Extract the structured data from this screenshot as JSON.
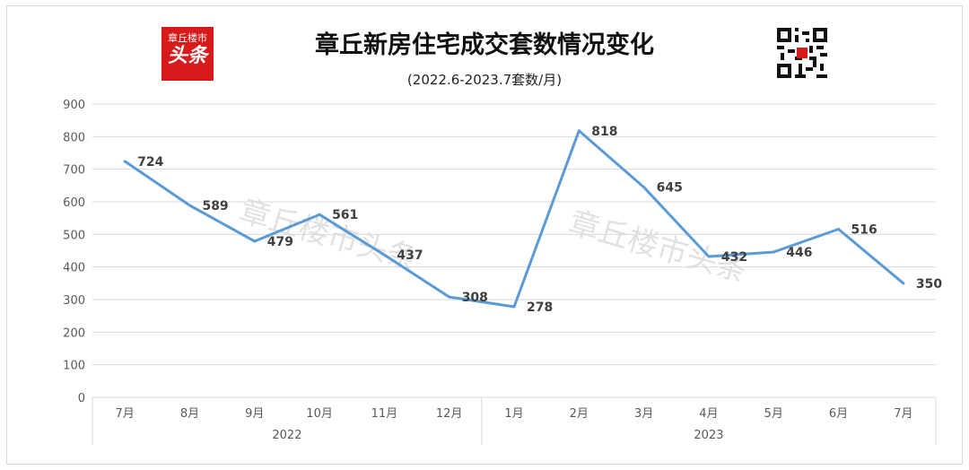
{
  "header": {
    "title": "章丘新房住宅成交套数情况变化",
    "subtitle": "(2022.6-2023.7套数/月)",
    "logo_line1": "章丘楼市",
    "logo_line2": "头条",
    "watermark": "章丘楼市头条"
  },
  "colors": {
    "line": "#5b9bd5",
    "logo": "#d71a1b",
    "grid": "#d9d9d9"
  },
  "chart_data": {
    "type": "line",
    "title": "章丘新房住宅成交套数情况变化",
    "subtitle": "(2022.6-2023.7套数/月)",
    "categories": [
      "7月",
      "8月",
      "9月",
      "10月",
      "11月",
      "12月",
      "1月",
      "2月",
      "3月",
      "4月",
      "5月",
      "6月",
      "7月"
    ],
    "groups": [
      {
        "label": "2022",
        "count": 6
      },
      {
        "label": "2023",
        "count": 7
      }
    ],
    "series": [
      {
        "values": [
          724,
          589,
          479,
          561,
          437,
          308,
          278,
          818,
          645,
          432,
          446,
          516,
          350
        ]
      }
    ],
    "ylim": [
      0,
      900
    ],
    "yticks": [
      0,
      100,
      200,
      300,
      400,
      500,
      600,
      700,
      800,
      900
    ],
    "grid": true,
    "legend": "none"
  }
}
